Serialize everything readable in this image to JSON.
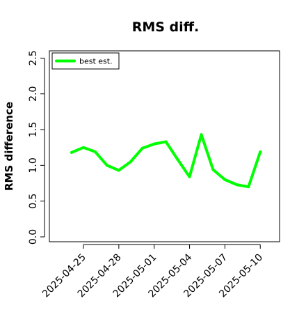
{
  "chart_data": {
    "type": "line",
    "title": "RMS diff.",
    "xlabel": "",
    "ylabel": "RMS difference",
    "ylim": [
      0.0,
      2.5
    ],
    "yticks": [
      "0.0",
      "0.5",
      "1.0",
      "1.5",
      "2.0",
      "2.5"
    ],
    "xticks": [
      "2025-04-25",
      "2025-04-28",
      "2025-05-01",
      "2025-05-04",
      "2025-05-07",
      "2025-05-10"
    ],
    "grid": false,
    "legend_position": "top-left",
    "series": [
      {
        "name": "best est.",
        "color": "#00ff00",
        "x": [
          "2025-04-24",
          "2025-04-25",
          "2025-04-26",
          "2025-04-27",
          "2025-04-28",
          "2025-04-29",
          "2025-04-30",
          "2025-05-01",
          "2025-05-02",
          "2025-05-03",
          "2025-05-04",
          "2025-05-05",
          "2025-05-06",
          "2025-05-07",
          "2025-05-08",
          "2025-05-09",
          "2025-05-10"
        ],
        "values": [
          1.18,
          1.25,
          1.19,
          1.0,
          0.93,
          1.05,
          1.24,
          1.3,
          1.33,
          1.08,
          0.84,
          1.43,
          0.94,
          0.8,
          0.73,
          0.7,
          1.19
        ]
      }
    ]
  }
}
